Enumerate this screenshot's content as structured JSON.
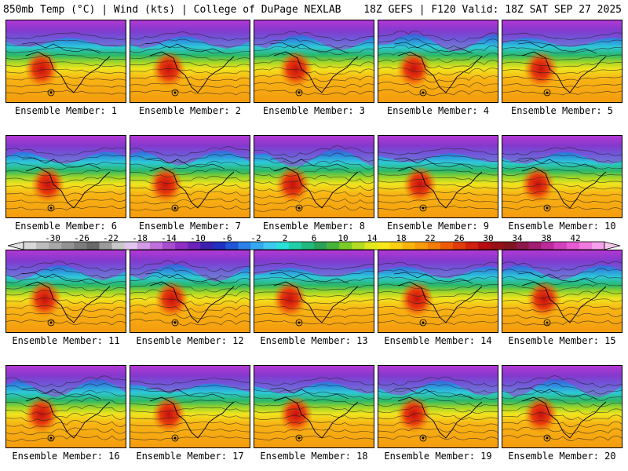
{
  "header": {
    "left": "850mb Temp (°C) | Wind (kts) | College of DuPage NEXLAB",
    "right": "18Z GEFS | F120 Valid: 18Z SAT SEP 27 2025"
  },
  "members": [
    "Ensemble Member: 1",
    "Ensemble Member: 2",
    "Ensemble Member: 3",
    "Ensemble Member: 4",
    "Ensemble Member: 5",
    "Ensemble Member: 6",
    "Ensemble Member: 7",
    "Ensemble Member: 8",
    "Ensemble Member: 9",
    "Ensemble Member: 10",
    "Ensemble Member: 11",
    "Ensemble Member: 12",
    "Ensemble Member: 13",
    "Ensemble Member: 14",
    "Ensemble Member: 15",
    "Ensemble Member: 16",
    "Ensemble Member: 17",
    "Ensemble Member: 18",
    "Ensemble Member: 19",
    "Ensemble Member: 20"
  ],
  "colorbar": {
    "ticks": [
      "-30",
      "-26",
      "-22",
      "-18",
      "-14",
      "-10",
      "-6",
      "-2",
      "2",
      "6",
      "10",
      "14",
      "18",
      "22",
      "26",
      "30",
      "34",
      "38",
      "42"
    ],
    "colors": [
      "#d8d8d8",
      "#bdbdbd",
      "#a8a8a8",
      "#929292",
      "#7c7c7c",
      "#686868",
      "#9b9b9b",
      "#c8c8c8",
      "#e3c6ef",
      "#d39be6",
      "#c070dc",
      "#a84cd0",
      "#8e2cc4",
      "#6a22b8",
      "#3d1fb0",
      "#2030c0",
      "#1f55d6",
      "#2d80e8",
      "#36a8f0",
      "#3fc8f2",
      "#2ae0d8",
      "#1fd0a8",
      "#22b880",
      "#2aa058",
      "#46b43a",
      "#7cca2a",
      "#b4dc22",
      "#e0e820",
      "#f6e81a",
      "#fcd012",
      "#fab40e",
      "#f89a0a",
      "#f47c08",
      "#ee5c08",
      "#e23c0a",
      "#d0200e",
      "#b40c12",
      "#981018",
      "#80141e",
      "#8c1848",
      "#a21c72",
      "#bc2a9a",
      "#d240bc",
      "#e65ad2",
      "#f07ae0",
      "#f4a0ea"
    ],
    "min": -34,
    "max": 46
  }
}
